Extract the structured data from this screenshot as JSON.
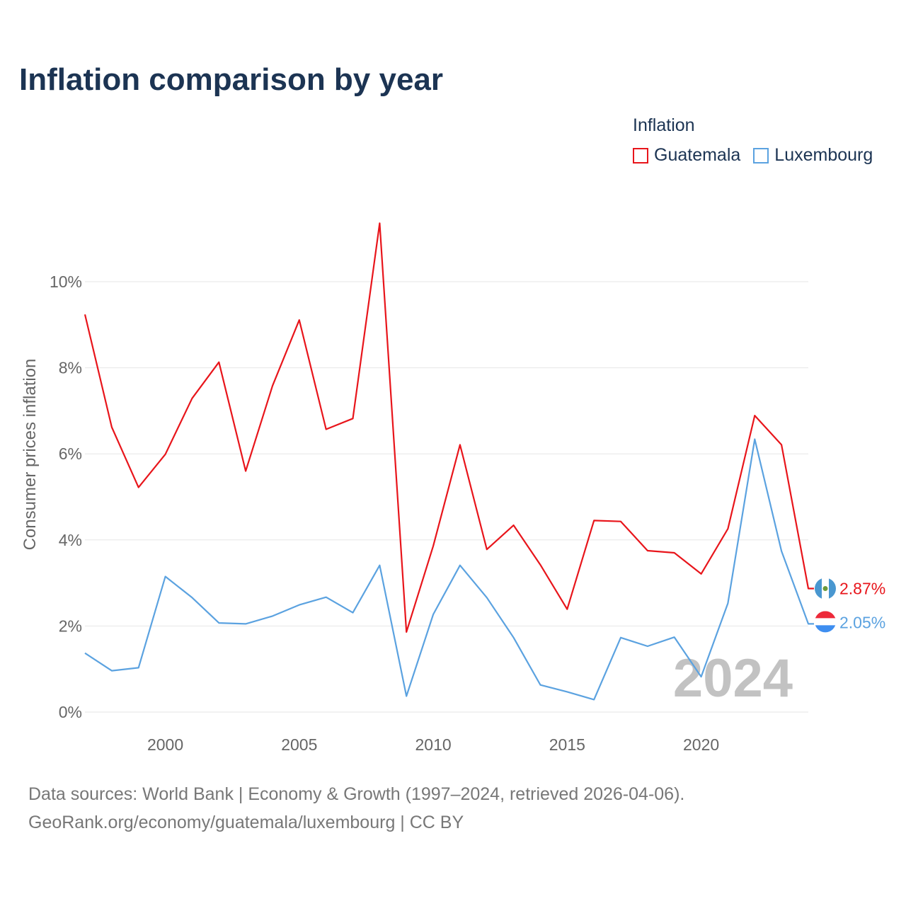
{
  "title": "Inflation comparison by year",
  "legend": {
    "title": "Inflation",
    "items": [
      {
        "label": "Guatemala",
        "color": "#e8151b"
      },
      {
        "label": "Luxembourg",
        "color": "#5ba2e0"
      }
    ]
  },
  "footer": {
    "line1": "Data sources: World Bank | Economy & Growth (1997–2024, retrieved 2026-04-06).",
    "line2": "GeoRank.org/economy/guatemala/luxembourg | CC BY"
  },
  "chart_data": {
    "type": "line",
    "title": "Inflation comparison by year",
    "xlabel": "",
    "ylabel": "Consumer prices inflation",
    "xlim": [
      1997,
      2024
    ],
    "ylim": [
      0,
      12
    ],
    "yticks": [
      0,
      2,
      4,
      6,
      8,
      10
    ],
    "ytick_labels": [
      "0%",
      "2%",
      "4%",
      "6%",
      "8%",
      "10%"
    ],
    "xticks": [
      2000,
      2005,
      2010,
      2015,
      2020
    ],
    "xtick_labels": [
      "2000",
      "2005",
      "2010",
      "2015",
      "2020"
    ],
    "grid": true,
    "watermark_year": "2024",
    "x": [
      1997,
      1998,
      1999,
      2000,
      2001,
      2002,
      2003,
      2004,
      2005,
      2006,
      2007,
      2008,
      2009,
      2010,
      2011,
      2012,
      2013,
      2014,
      2015,
      2016,
      2017,
      2018,
      2019,
      2020,
      2021,
      2022,
      2023,
      2024
    ],
    "series": [
      {
        "name": "Guatemala",
        "color": "#e8151b",
        "end_label": "2.87%",
        "values": [
          9.24,
          6.62,
          5.22,
          5.99,
          7.29,
          8.13,
          5.6,
          7.58,
          9.11,
          6.57,
          6.82,
          11.36,
          1.86,
          3.86,
          6.21,
          3.78,
          4.34,
          3.42,
          2.39,
          4.45,
          4.43,
          3.75,
          3.7,
          3.21,
          4.26,
          6.89,
          6.21,
          2.87
        ]
      },
      {
        "name": "Luxembourg",
        "color": "#5ba2e0",
        "end_label": "2.05%",
        "values": [
          1.37,
          0.96,
          1.03,
          3.15,
          2.66,
          2.07,
          2.05,
          2.23,
          2.49,
          2.67,
          2.31,
          3.41,
          0.37,
          2.27,
          3.41,
          2.66,
          1.73,
          0.63,
          0.47,
          0.29,
          1.73,
          1.53,
          1.74,
          0.82,
          2.53,
          6.34,
          3.74,
          2.05
        ]
      }
    ]
  }
}
